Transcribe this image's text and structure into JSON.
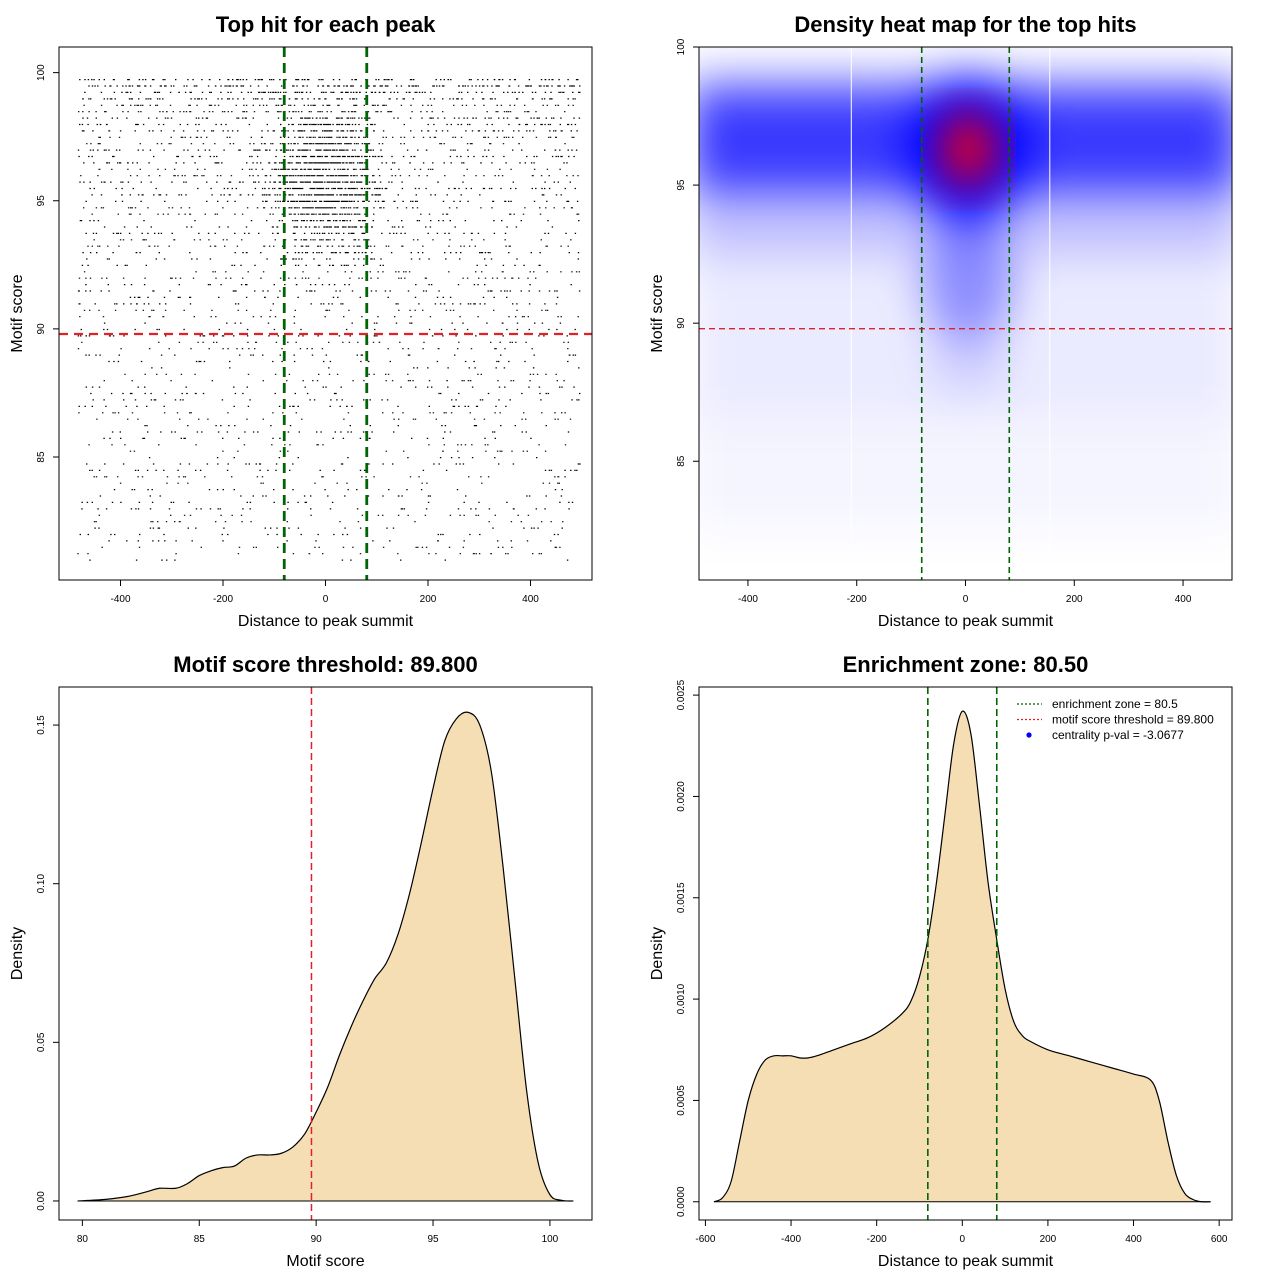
{
  "chart_data": [
    {
      "type": "scatter",
      "title": "Top hit for each peak",
      "xlabel": "Distance to peak summit",
      "ylabel": "Motif score",
      "xlim": [
        -520,
        520
      ],
      "ylim": [
        80.2,
        101.0
      ],
      "xticks": [
        -400,
        -200,
        0,
        200,
        400
      ],
      "yticks": [
        85,
        90,
        95,
        100
      ],
      "x_range_of_points": [
        -485,
        495
      ],
      "n_points_rendered": 9000,
      "hlines": [
        {
          "y": 89.8,
          "color": "#e0202a",
          "style": "dashed",
          "meaning": "motif score threshold"
        }
      ],
      "vlines": [
        {
          "x": -80.5,
          "color": "#006400",
          "style": "dashed"
        },
        {
          "x": 80.5,
          "color": "#006400",
          "style": "dashed"
        }
      ]
    },
    {
      "type": "heatmap",
      "title": "Density heat map for the top hits",
      "xlabel": "Distance to peak summit",
      "ylabel": "Motif score",
      "xlim": [
        -490,
        490
      ],
      "ylim": [
        80.7,
        100.0
      ],
      "xticks": [
        -400,
        -200,
        0,
        200,
        400
      ],
      "yticks": [
        85,
        90,
        95,
        100
      ],
      "colormap": [
        "#ffffff",
        "#0000ff",
        "#ff0000"
      ],
      "hotspot": {
        "x": 5,
        "y": 96.3
      },
      "hlines": [
        {
          "y": 89.8,
          "color": "#e0202a",
          "style": "dashed"
        }
      ],
      "vlines": [
        {
          "x": -80.5,
          "color": "#006400",
          "style": "dashed"
        },
        {
          "x": 80.5,
          "color": "#006400",
          "style": "dashed"
        }
      ],
      "white_lines_x": [
        -210,
        155
      ]
    },
    {
      "type": "area",
      "title": "Motif score threshold: 89.800",
      "xlabel": "Motif score",
      "ylabel": "Density",
      "xlim": [
        79.0,
        101.8
      ],
      "ylim": [
        -0.006,
        0.162
      ],
      "xticks": [
        80,
        85,
        90,
        95,
        100
      ],
      "yticks": [
        0.0,
        0.05,
        0.1,
        0.15
      ],
      "ytick_labels": [
        "0.00",
        "0.05",
        "0.10",
        "0.15"
      ],
      "fill": "#f5deb3",
      "x": [
        79.8,
        81.0,
        82.0,
        82.8,
        83.3,
        84.0,
        84.5,
        85.0,
        85.5,
        86.0,
        86.5,
        87.0,
        87.5,
        88.0,
        88.5,
        89.0,
        89.5,
        90.0,
        90.5,
        91.0,
        91.5,
        92.0,
        92.5,
        93.0,
        93.5,
        94.0,
        94.5,
        95.0,
        95.5,
        96.0,
        96.5,
        97.0,
        97.5,
        98.0,
        98.5,
        99.0,
        99.5,
        100.0,
        100.5,
        101.0
      ],
      "y": [
        0.0,
        0.0005,
        0.0015,
        0.003,
        0.004,
        0.004,
        0.0055,
        0.008,
        0.0095,
        0.0105,
        0.011,
        0.0135,
        0.0145,
        0.0145,
        0.015,
        0.017,
        0.021,
        0.028,
        0.036,
        0.046,
        0.055,
        0.063,
        0.07,
        0.075,
        0.084,
        0.097,
        0.113,
        0.13,
        0.145,
        0.152,
        0.154,
        0.15,
        0.135,
        0.105,
        0.07,
        0.035,
        0.012,
        0.002,
        0.0002,
        0.0
      ]
    },
    {
      "type": "area",
      "title": "Enrichment zone: 80.50",
      "xlabel": "Distance to peak summit",
      "ylabel": "Density",
      "xlim": [
        -615,
        630
      ],
      "ylim": [
        -9e-05,
        0.00254
      ],
      "xticks": [
        -600,
        -400,
        -200,
        0,
        200,
        400,
        600
      ],
      "yticks": [
        0.0,
        0.0005,
        0.001,
        0.0015,
        0.002,
        0.0025
      ],
      "ytick_labels": [
        "0.0000",
        "0.0005",
        "0.0010",
        "0.0015",
        "0.0020",
        "0.0025"
      ],
      "fill": "#f5deb3",
      "x": [
        -580,
        -560,
        -540,
        -520,
        -500,
        -480,
        -460,
        -440,
        -420,
        -400,
        -380,
        -360,
        -340,
        -300,
        -260,
        -220,
        -180,
        -140,
        -120,
        -100,
        -80,
        -60,
        -40,
        -20,
        0,
        20,
        40,
        60,
        80,
        100,
        120,
        140,
        160,
        200,
        250,
        300,
        350,
        400,
        440,
        460,
        480,
        500,
        520,
        540,
        560,
        580
      ],
      "y": [
        0.0,
        2e-05,
        0.0001,
        0.0003,
        0.0005,
        0.00063,
        0.0007,
        0.00072,
        0.00072,
        0.00072,
        0.00071,
        0.00071,
        0.00072,
        0.00075,
        0.00078,
        0.00081,
        0.00086,
        0.00093,
        0.00099,
        0.00111,
        0.0013,
        0.00158,
        0.00192,
        0.00226,
        0.00242,
        0.00231,
        0.00196,
        0.00158,
        0.0013,
        0.00105,
        0.00089,
        0.00082,
        0.00079,
        0.00075,
        0.00072,
        0.00069,
        0.00066,
        0.00063,
        0.0006,
        0.0005,
        0.0003,
        0.00013,
        4e-05,
        1e-05,
        0.0,
        0.0
      ],
      "vlines": [
        {
          "x": -80.5,
          "color": "#006400",
          "style": "dashed"
        },
        {
          "x": 80.5,
          "color": "#006400",
          "style": "dashed"
        }
      ],
      "legend": {
        "placement": "top-right",
        "entries": [
          {
            "label": "enrichment zone = 80.5",
            "color": "#006400",
            "symbol": "dotted-line"
          },
          {
            "label": "motif score threshold = 89.800",
            "color": "#e0202a",
            "symbol": "dotted-line"
          },
          {
            "label": "centrality p-val = -3.0677",
            "color": "#0000ff",
            "symbol": "point"
          }
        ]
      }
    }
  ]
}
